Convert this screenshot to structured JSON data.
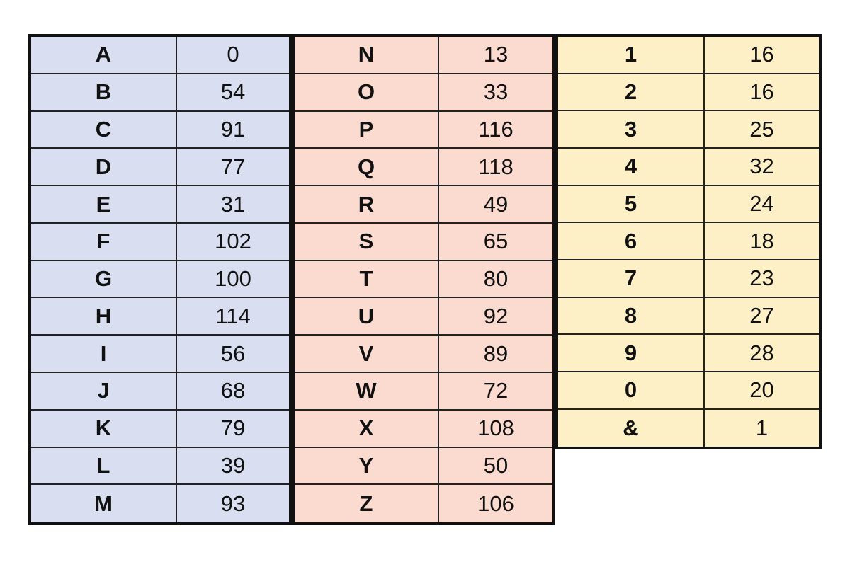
{
  "tables": [
    {
      "color": "#d9dff1",
      "rows": [
        [
          "A",
          0
        ],
        [
          "B",
          54
        ],
        [
          "C",
          91
        ],
        [
          "D",
          77
        ],
        [
          "E",
          31
        ],
        [
          "F",
          102
        ],
        [
          "G",
          100
        ],
        [
          "H",
          114
        ],
        [
          "I",
          56
        ],
        [
          "J",
          68
        ],
        [
          "K",
          79
        ],
        [
          "L",
          39
        ],
        [
          "M",
          93
        ]
      ]
    },
    {
      "color": "#fbdacf",
      "rows": [
        [
          "N",
          13
        ],
        [
          "O",
          33
        ],
        [
          "P",
          116
        ],
        [
          "Q",
          118
        ],
        [
          "R",
          49
        ],
        [
          "S",
          65
        ],
        [
          "T",
          80
        ],
        [
          "U",
          92
        ],
        [
          "V",
          89
        ],
        [
          "W",
          72
        ],
        [
          "X",
          108
        ],
        [
          "Y",
          50
        ],
        [
          "Z",
          106
        ]
      ]
    },
    {
      "color": "#fdefc6",
      "rows": [
        [
          "1",
          16
        ],
        [
          "2",
          16
        ],
        [
          "3",
          25
        ],
        [
          "4",
          32
        ],
        [
          "5",
          24
        ],
        [
          "6",
          18
        ],
        [
          "7",
          23
        ],
        [
          "8",
          27
        ],
        [
          "9",
          28
        ],
        [
          "0",
          20
        ],
        [
          "&",
          1
        ]
      ]
    }
  ]
}
